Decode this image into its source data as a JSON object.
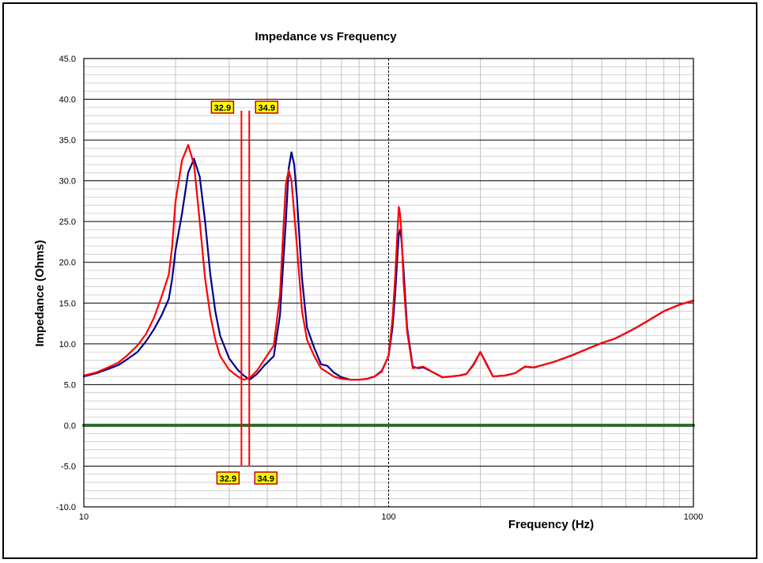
{
  "chart_data": {
    "type": "line",
    "title": "Impedance vs Frequency",
    "xlabel": "Frequency (Hz)",
    "ylabel": "Impedance (Ohms)",
    "xscale": "log",
    "xlim": [
      10,
      1000
    ],
    "ylim": [
      -10,
      45
    ],
    "x_ticks": [
      "10",
      "100",
      "1000"
    ],
    "y_ticks": [
      "45.0",
      "40.0",
      "35.0",
      "30.0",
      "25.0",
      "20.0",
      "15.0",
      "10.0",
      "5.0",
      "0.0",
      "-5.0",
      "-10.0"
    ],
    "grid": true,
    "colors": {
      "blue": "#00008b",
      "red": "#ff0000",
      "zero_line": "#2e6b2e"
    },
    "series": [
      {
        "color": "#00008b",
        "x": [
          10,
          11,
          12,
          13,
          14,
          15,
          16,
          17,
          18,
          19,
          19.5,
          20,
          21,
          22,
          23,
          24,
          25,
          26,
          27,
          28,
          30,
          32,
          33.5,
          35,
          37,
          39,
          42,
          44,
          46,
          47,
          48,
          49,
          50,
          52,
          54,
          57,
          60,
          63,
          66,
          70,
          75,
          80,
          85,
          90,
          95,
          100,
          103,
          105,
          107,
          108,
          109,
          110,
          112,
          115,
          120,
          125,
          130,
          140,
          150,
          160,
          170,
          180,
          190,
          200,
          210,
          220,
          240,
          260,
          280,
          300,
          350,
          400,
          450,
          500,
          550,
          600,
          650,
          700,
          800,
          900,
          1000
        ],
        "y": [
          6.0,
          6.4,
          6.9,
          7.4,
          8.2,
          9.0,
          10.3,
          11.8,
          13.5,
          15.5,
          18,
          21.5,
          26.0,
          31.0,
          32.7,
          30.5,
          25.0,
          18.5,
          14.0,
          11.0,
          8.2,
          6.8,
          6.1,
          5.6,
          6.3,
          7.3,
          8.5,
          13.5,
          25.0,
          31.5,
          33.5,
          32.0,
          28.0,
          18.0,
          12.0,
          9.5,
          7.5,
          7.3,
          6.5,
          5.9,
          5.6,
          5.6,
          5.7,
          6.0,
          6.7,
          8.5,
          12.0,
          16.0,
          21.0,
          23.5,
          24.0,
          23.0,
          19.0,
          12.0,
          7.2,
          7.0,
          7.1,
          6.5,
          5.9,
          6.0,
          6.1,
          6.3,
          7.5,
          9.0,
          7.5,
          6.0,
          6.1,
          6.4,
          7.2,
          7.1,
          7.8,
          8.6,
          9.4,
          10.1,
          10.6,
          11.3,
          12.0,
          12.7,
          14.0,
          14.8,
          15.3
        ]
      },
      {
        "color": "#ff0000",
        "x": [
          10,
          11,
          12,
          13,
          14,
          15,
          16,
          17,
          18,
          19,
          19.5,
          20,
          21,
          22,
          23,
          24,
          25,
          26,
          27,
          28,
          30,
          32,
          33.5,
          35,
          37,
          39,
          42,
          44,
          45,
          46,
          47,
          48,
          49,
          50,
          52,
          54,
          57,
          60,
          63,
          66,
          70,
          75,
          80,
          85,
          90,
          95,
          100,
          103,
          105,
          107,
          108,
          109,
          110,
          112,
          115,
          120,
          125,
          130,
          140,
          150,
          160,
          170,
          180,
          190,
          200,
          210,
          220,
          240,
          260,
          280,
          300,
          350,
          400,
          450,
          500,
          550,
          600,
          650,
          700,
          800,
          900,
          1000
        ],
        "y": [
          6.1,
          6.5,
          7.1,
          7.7,
          8.7,
          9.8,
          11.2,
          13.2,
          15.8,
          18.5,
          22,
          27.5,
          32.5,
          34.4,
          32.0,
          25.0,
          18.0,
          13.5,
          10.5,
          8.5,
          6.8,
          6.0,
          5.6,
          5.8,
          6.7,
          8.0,
          9.8,
          16.0,
          23.0,
          29.5,
          31.3,
          30.0,
          26.0,
          22.0,
          14.0,
          10.5,
          8.5,
          7.0,
          6.5,
          6.0,
          5.7,
          5.6,
          5.6,
          5.7,
          6.0,
          6.6,
          8.6,
          13.0,
          18.0,
          24.0,
          26.8,
          26.0,
          24.0,
          17.5,
          11.5,
          7.0,
          7.1,
          7.2,
          6.5,
          5.9,
          6.0,
          6.1,
          6.3,
          7.4,
          9.0,
          7.4,
          6.0,
          6.1,
          6.4,
          7.2,
          7.1,
          7.8,
          8.6,
          9.4,
          10.1,
          10.6,
          11.3,
          12.0,
          12.7,
          14.0,
          14.8,
          15.3
        ]
      },
      {
        "color": "#2e6b2e",
        "x": [
          10,
          1000
        ],
        "y": [
          0,
          0
        ]
      }
    ],
    "markers": [
      {
        "x": 32.9,
        "label": "32.9",
        "color": "#ff0000"
      },
      {
        "x": 34.9,
        "label": "34.9",
        "color": "#ff0000"
      }
    ],
    "vline_dashed_x": 100
  }
}
